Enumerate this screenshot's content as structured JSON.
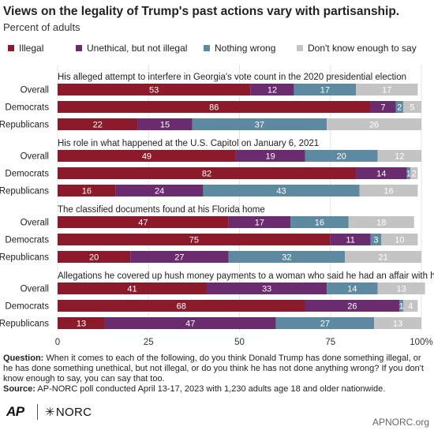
{
  "title": "Views on the legality of Trump's past actions vary with partisanship.",
  "subtitle": "Percent of adults",
  "colors": {
    "Illegal": "#8c1a2b",
    "Unethical, but not illegal": "#6a2c6e",
    "Nothing wrong": "#5e8aa1",
    "Don't know enough to say": "#c4c4c4"
  },
  "chart_data": {
    "type": "bar",
    "orientation": "horizontal",
    "stacked": true,
    "xlim": [
      0,
      100
    ],
    "x_ticks": [
      "0",
      "25",
      "50",
      "75",
      "100%"
    ],
    "legend": [
      "Illegal",
      "Unethical, but not illegal",
      "Nothing wrong",
      "Don't know enough to say"
    ],
    "legend_placement": "top",
    "groups": [
      {
        "label": "His alleged attempt to interfere in Georgia's vote count in the 2020 presidential election",
        "rows": [
          {
            "category": "Overall",
            "values": [
              53,
              12,
              17,
              17
            ]
          },
          {
            "category": "Democrats",
            "values": [
              86,
              7,
              2,
              5
            ]
          },
          {
            "category": "Republicans",
            "values": [
              22,
              15,
              37,
              26
            ]
          }
        ]
      },
      {
        "label": "His role in what happened at the U.S. Capitol on January 6, 2021",
        "rows": [
          {
            "category": "Overall",
            "values": [
              49,
              19,
              20,
              12
            ]
          },
          {
            "category": "Democrats",
            "values": [
              82,
              14,
              1,
              2
            ]
          },
          {
            "category": "Republicans",
            "values": [
              16,
              24,
              43,
              16
            ]
          }
        ]
      },
      {
        "label": "The classified documents found at his Florida home",
        "rows": [
          {
            "category": "Overall",
            "values": [
              47,
              17,
              16,
              18
            ]
          },
          {
            "category": "Democrats",
            "values": [
              75,
              11,
              3,
              10
            ]
          },
          {
            "category": "Republicans",
            "values": [
              20,
              27,
              32,
              21
            ]
          }
        ]
      },
      {
        "label": "Allegations he covered up hush money payments to a woman who said he had an affair with her",
        "rows": [
          {
            "category": "Overall",
            "values": [
              41,
              33,
              14,
              13
            ]
          },
          {
            "category": "Democrats",
            "values": [
              68,
              26,
              1,
              4
            ]
          },
          {
            "category": "Republicans",
            "values": [
              13,
              47,
              27,
              13
            ]
          }
        ]
      }
    ]
  },
  "footnote": {
    "question_label": "Question:",
    "question_text": "When it comes to each of the following, do you think Donald Trump has done something illegal, or he has done something unethical, but not illegal, or do you think he has not done anything wrong? If you don't know enough to say, you can say that too.",
    "source_label": "Source:",
    "source_text": "AP-NORC poll conducted April 13-17, 2023 with 1,230 adults age 18 and older nationwide."
  },
  "branding": {
    "ap": "AP",
    "norc": "NORC",
    "norc_mark": "✳",
    "site": "APNORC.org"
  }
}
